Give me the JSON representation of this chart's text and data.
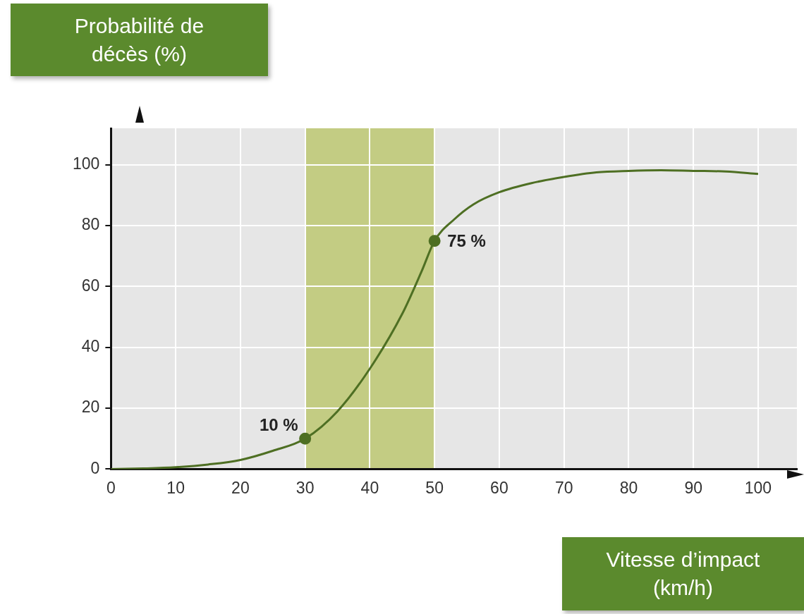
{
  "chart_data": {
    "type": "line",
    "xlabel": "Vitesse d’impact (km/h)",
    "ylabel": "Probabilité de décès (%)",
    "xlim": [
      0,
      106
    ],
    "xticks": [
      0,
      10,
      20,
      30,
      40,
      50,
      60,
      70,
      80,
      90,
      100
    ],
    "ylim": [
      0,
      112
    ],
    "yticks": [
      0,
      20,
      40,
      60,
      80,
      100
    ],
    "grid": true,
    "legend": false,
    "marker": "none",
    "line_style": "solid",
    "series": [
      {
        "color": "#4e6f23",
        "x": [
          0,
          5,
          10,
          15,
          20,
          25,
          30,
          35,
          40,
          45,
          48,
          50,
          53,
          56,
          60,
          65,
          70,
          75,
          80,
          85,
          90,
          95,
          100
        ],
        "values": [
          0,
          0.2,
          0.6,
          1.5,
          3,
          6,
          10,
          19,
          33,
          51,
          65,
          75,
          82,
          87,
          91,
          94,
          96,
          97.5,
          98,
          98.2,
          98,
          97.8,
          97
        ]
      },
      {
        "type": "scatter",
        "marker": "circle",
        "color": "#4e6f23",
        "x": [
          30,
          50
        ],
        "values": [
          10,
          75
        ],
        "value_labels": [
          "10 %",
          "75 %"
        ]
      }
    ],
    "bands": [
      {
        "axis": "x",
        "from": 30,
        "to": 50,
        "color": "#c3cc83"
      }
    ]
  }
}
